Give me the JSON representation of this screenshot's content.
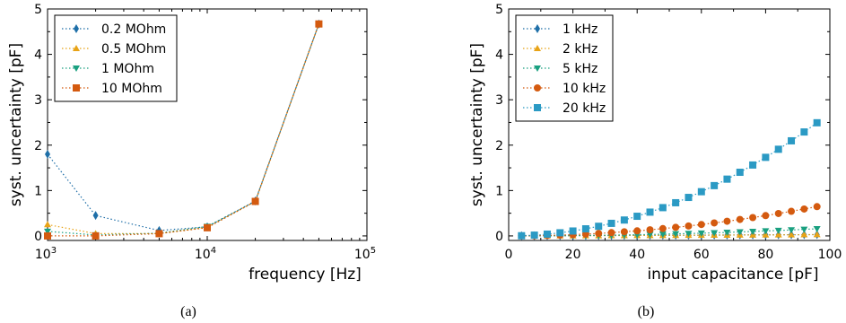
{
  "figure": {
    "captions": [
      "(a)",
      "(b)"
    ]
  },
  "chart_data": [
    {
      "type": "line",
      "xscale": "log",
      "xlabel": "frequency [Hz]",
      "ylabel": "syst. uncertainty [pF]",
      "xlim": [
        1000,
        100000
      ],
      "ylim": [
        -0.1,
        5
      ],
      "x_ticks": [
        1000,
        10000,
        100000
      ],
      "x_tick_labels": [
        [
          "10",
          "3"
        ],
        [
          "10",
          "4"
        ],
        [
          "10",
          "5"
        ]
      ],
      "y_ticks": [
        0,
        1,
        2,
        3,
        4,
        5
      ],
      "y_tick_labels": [
        "0",
        "1",
        "2",
        "3",
        "4",
        "5"
      ],
      "legend_position": "top-left",
      "x": [
        1000,
        2000,
        5000,
        10000,
        20000,
        50000
      ],
      "series": [
        {
          "name": "0.2 MOhm",
          "color": "#1f6fa8",
          "marker": "diamond",
          "values": [
            1.8,
            0.45,
            0.12,
            0.2,
            0.77,
            4.67
          ]
        },
        {
          "name": "0.5 MOhm",
          "color": "#e8a317",
          "marker": "triangle-up",
          "values": [
            0.25,
            0.05,
            0.05,
            0.19,
            0.76,
            4.67
          ]
        },
        {
          "name": "1 MOhm",
          "color": "#1aa080",
          "marker": "triangle-down",
          "values": [
            0.1,
            0.02,
            0.06,
            0.21,
            0.76,
            4.67
          ]
        },
        {
          "name": "10 MOhm",
          "color": "#d45a0f",
          "marker": "square",
          "values": [
            0.0,
            0.0,
            0.05,
            0.18,
            0.76,
            4.67
          ]
        }
      ]
    },
    {
      "type": "line",
      "xlabel": "input capacitance [pF]",
      "ylabel": "syst. uncertainty [pF]",
      "xlim": [
        0,
        100
      ],
      "ylim": [
        -0.1,
        5
      ],
      "x_ticks": [
        0,
        20,
        40,
        60,
        80,
        100
      ],
      "x_tick_labels": [
        "0",
        "20",
        "40",
        "60",
        "80",
        "100"
      ],
      "y_ticks": [
        0,
        1,
        2,
        3,
        4,
        5
      ],
      "y_tick_labels": [
        "0",
        "1",
        "2",
        "3",
        "4",
        "5"
      ],
      "legend_position": "top-left",
      "x": [
        4,
        8,
        12,
        16,
        20,
        24,
        28,
        32,
        36,
        40,
        44,
        48,
        52,
        56,
        60,
        64,
        68,
        72,
        76,
        80,
        84,
        88,
        92,
        96
      ],
      "series": [
        {
          "name": "1 kHz",
          "color": "#1f6fa8",
          "marker": "diamond",
          "values": [
            0.005,
            0.005,
            0.006,
            0.006,
            0.007,
            0.008,
            0.008,
            0.009,
            0.01,
            0.011,
            0.012,
            0.013,
            0.014,
            0.015,
            0.017,
            0.018,
            0.019,
            0.02,
            0.022,
            0.023,
            0.024,
            0.026,
            0.027,
            0.028
          ]
        },
        {
          "name": "2 kHz",
          "color": "#e8a317",
          "marker": "triangle-up",
          "values": [
            0.001,
            0.002,
            0.003,
            0.004,
            0.005,
            0.006,
            0.007,
            0.008,
            0.009,
            0.01,
            0.011,
            0.012,
            0.014,
            0.015,
            0.016,
            0.018,
            0.019,
            0.02,
            0.022,
            0.023,
            0.025,
            0.026,
            0.028,
            0.03
          ]
        },
        {
          "name": "5 kHz",
          "color": "#1aa080",
          "marker": "triangle-down",
          "values": [
            0.0,
            0.001,
            0.002,
            0.004,
            0.007,
            0.01,
            0.013,
            0.017,
            0.022,
            0.027,
            0.033,
            0.039,
            0.046,
            0.053,
            0.061,
            0.069,
            0.078,
            0.088,
            0.098,
            0.109,
            0.12,
            0.132,
            0.145,
            0.157
          ]
        },
        {
          "name": "10 kHz",
          "color": "#d45a0f",
          "marker": "circle",
          "values": [
            0.001,
            0.004,
            0.01,
            0.018,
            0.028,
            0.04,
            0.055,
            0.072,
            0.091,
            0.112,
            0.135,
            0.161,
            0.189,
            0.219,
            0.252,
            0.286,
            0.323,
            0.363,
            0.404,
            0.448,
            0.494,
            0.542,
            0.593,
            0.645
          ]
        },
        {
          "name": "20 kHz",
          "color": "#2b9ac4",
          "marker": "square",
          "values": [
            0.004,
            0.017,
            0.039,
            0.069,
            0.108,
            0.156,
            0.212,
            0.277,
            0.35,
            0.433,
            0.524,
            0.623,
            0.731,
            0.848,
            0.974,
            1.108,
            1.251,
            1.402,
            1.562,
            1.731,
            1.909,
            2.095,
            2.29,
            2.493
          ]
        }
      ]
    }
  ]
}
